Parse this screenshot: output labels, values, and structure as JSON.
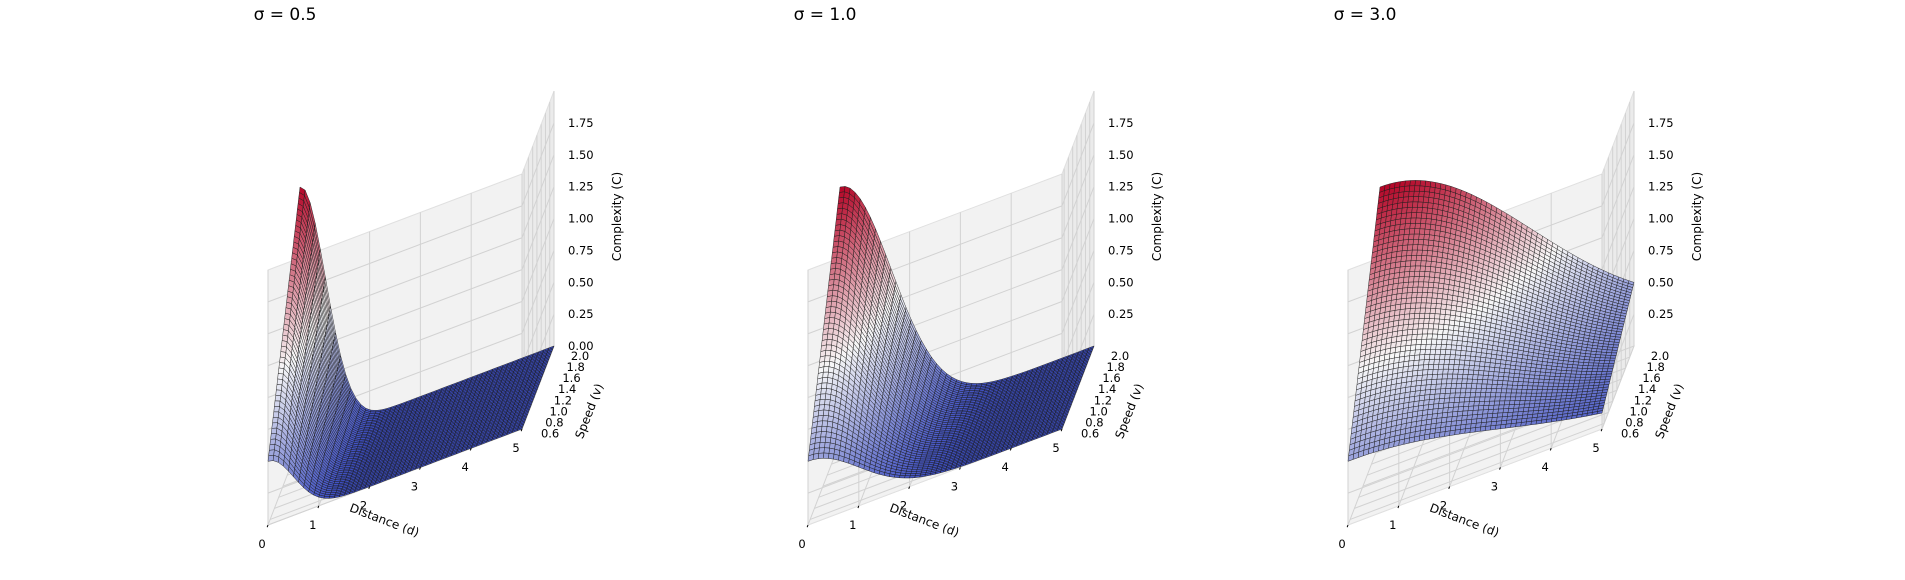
{
  "chart_data": [
    {
      "type": "surface3d",
      "title": "σ = 0.5",
      "sigma": 0.5,
      "xlabel": "Distance (d)",
      "ylabel": "Speed (v)",
      "zlabel": "Complexity (C)",
      "xticks": [
        "0",
        "1",
        "2",
        "3",
        "4",
        "5"
      ],
      "yticks": [
        "0.6",
        "0.8",
        "1.0",
        "1.2",
        "1.4",
        "1.6",
        "1.8",
        "2.0"
      ],
      "zticks": [
        "0.00",
        "0.25",
        "0.50",
        "0.75",
        "1.00",
        "1.25",
        "1.50",
        "1.75"
      ],
      "xlim": [
        0,
        5
      ],
      "ylim": [
        0.5,
        2.0
      ],
      "zlim": [
        0,
        2.0
      ],
      "function": "C = v * exp(-d^2 / (2*sigma^2))",
      "colormap": [
        "#3b4cc0",
        "#f7f7f7",
        "#b40426"
      ],
      "grid": true
    },
    {
      "type": "surface3d",
      "title": "σ = 1.0",
      "sigma": 1.0,
      "xlabel": "Distance (d)",
      "ylabel": "Speed (v)",
      "zlabel": "Complexity (C)",
      "xticks": [
        "0",
        "1",
        "2",
        "3",
        "4",
        "5"
      ],
      "yticks": [
        "0.6",
        "0.8",
        "1.0",
        "1.2",
        "1.4",
        "1.6",
        "1.8",
        "2.0"
      ],
      "zticks": [
        "0.25",
        "0.50",
        "0.75",
        "1.00",
        "1.25",
        "1.50",
        "1.75"
      ],
      "xlim": [
        0,
        5
      ],
      "ylim": [
        0.5,
        2.0
      ],
      "zlim": [
        0,
        2.0
      ],
      "function": "C = v * exp(-d^2 / (2*sigma^2))",
      "colormap": [
        "#3b4cc0",
        "#f7f7f7",
        "#b40426"
      ],
      "grid": true
    },
    {
      "type": "surface3d",
      "title": "σ = 3.0",
      "sigma": 3.0,
      "xlabel": "Distance (d)",
      "ylabel": "Speed (v)",
      "zlabel": "Complexity (C)",
      "xticks": [
        "0",
        "1",
        "2",
        "3",
        "4",
        "5"
      ],
      "yticks": [
        "0.6",
        "0.8",
        "1.0",
        "1.2",
        "1.4",
        "1.6",
        "1.8",
        "2.0"
      ],
      "zticks": [
        "0.25",
        "0.50",
        "0.75",
        "1.00",
        "1.25",
        "1.50",
        "1.75"
      ],
      "xlim": [
        0,
        5
      ],
      "ylim": [
        0.5,
        2.0
      ],
      "zlim": [
        0,
        2.0
      ],
      "function": "C = v * exp(-d^2 / (2*sigma^2))",
      "colormap": [
        "#3b4cc0",
        "#f7f7f7",
        "#b40426"
      ],
      "grid": true
    }
  ]
}
